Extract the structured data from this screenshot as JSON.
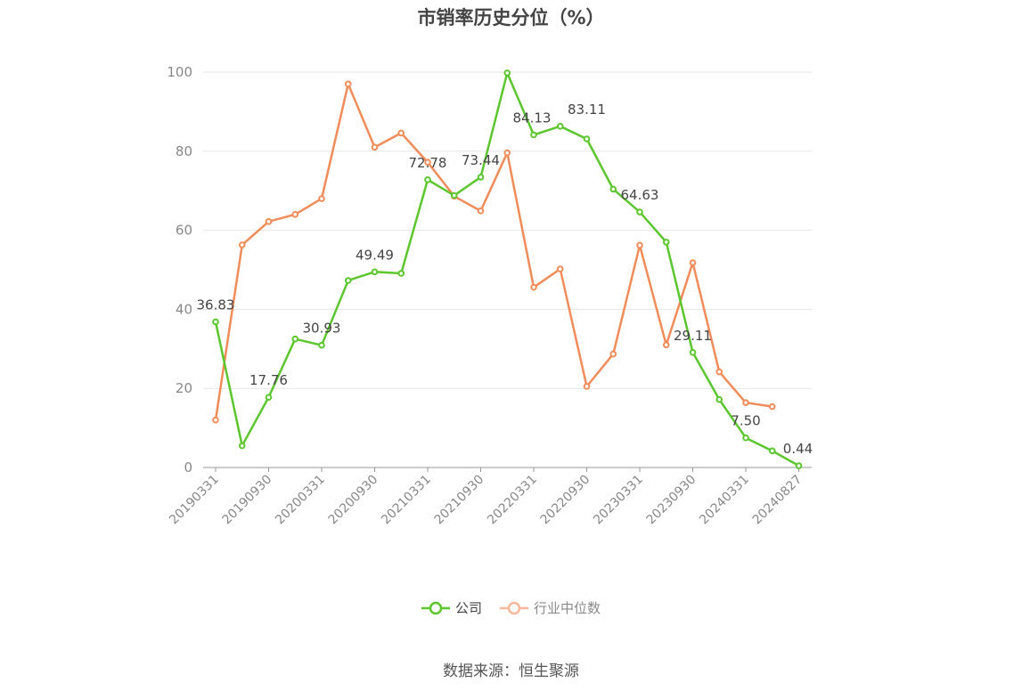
{
  "chart_data": {
    "type": "line",
    "title": "市销率历史分位（%）",
    "ylim": [
      0,
      100
    ],
    "yticks": [
      0,
      20,
      40,
      60,
      80,
      100
    ],
    "x_tick_labels": [
      "20190331",
      "20190930",
      "20200331",
      "20200930",
      "20210331",
      "20210930",
      "20220331",
      "20220930",
      "20230331",
      "20230930",
      "20240331",
      "20240827"
    ],
    "grid": true,
    "legend_position": "bottom",
    "series": [
      {
        "name": "公司",
        "color": "#5cc62f",
        "values": [
          36.83,
          5.5,
          17.76,
          32.5,
          30.93,
          47.3,
          49.49,
          49.1,
          72.78,
          68.8,
          73.44,
          99.8,
          84.13,
          86.3,
          83.11,
          70.4,
          64.63,
          57.0,
          29.11,
          17.2,
          7.5,
          4.2,
          0.44
        ],
        "labels": {
          "0": "36.83",
          "2": "17.76",
          "4": "30.93",
          "6": "49.49",
          "8": "72.78",
          "10": "73.44",
          "12": "84.13",
          "14": "83.11",
          "16": "64.63",
          "18": "29.11",
          "20": "7.50",
          "22": "0.44"
        }
      },
      {
        "name": "行业中位数",
        "color": "#f08c5a",
        "values": [
          12.0,
          56.3,
          62.2,
          64.0,
          68.0,
          97.0,
          81.0,
          84.6,
          77.2,
          68.6,
          64.9,
          79.6,
          45.6,
          50.2,
          20.5,
          28.7,
          56.2,
          31.0,
          51.8,
          24.2,
          16.4,
          15.4,
          null
        ]
      }
    ]
  },
  "legend": {
    "company": "公司",
    "industry": "行业中位数"
  },
  "source": "数据来源：恒生聚源"
}
